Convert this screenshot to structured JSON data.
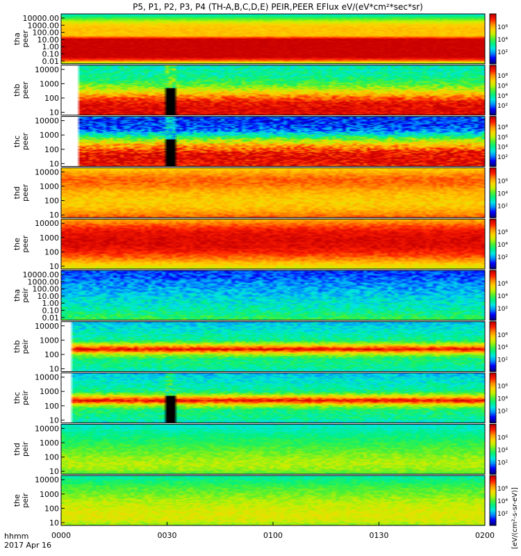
{
  "chart_data": {
    "type": "heatmap",
    "title": "P5, P1, P2, P3, P4 (TH-A,B,C,D,E) PEIR,PEER EFlux eV/(eV*cm²*sec*sr)",
    "colorbar_label": "[eV/(cm²-s-sr-eV)]",
    "x_axis": {
      "prefix_label": "hhmm",
      "date_label": "2017 Apr 16",
      "ticks": [
        "0000",
        "0030",
        "0100",
        "0130",
        "0200"
      ],
      "range_minutes": [
        0,
        120
      ]
    },
    "colormap": [
      "#00008c",
      "#0000ff",
      "#008cff",
      "#00e6e6",
      "#00f080",
      "#50f030",
      "#c8f000",
      "#ffd200",
      "#ff8c00",
      "#ff1e00",
      "#c80000"
    ],
    "panels": [
      {
        "ylabel": [
          "tha",
          "peer"
        ],
        "yticks": [
          "10000.00",
          "1000.00",
          "100.00",
          "10.00",
          "1.00",
          "0.10",
          "0.01"
        ],
        "ylim": [
          0.01,
          20000
        ],
        "cbar_ticks": [
          "10⁶",
          "10⁴",
          "10²"
        ],
        "levels": [
          3.2,
          4.6,
          6.0,
          7.0,
          7.2,
          7.2,
          7.2,
          10.0,
          10.0,
          10.0,
          10.0,
          10.0,
          10.0,
          8.4,
          4.5
        ],
        "noise": 0.3,
        "start_min": 0,
        "gaps": []
      },
      {
        "ylabel": [
          "thb",
          "peer"
        ],
        "yticks": [
          "10000",
          "1000",
          "100",
          "10"
        ],
        "ylim": [
          7,
          30000
        ],
        "cbar_ticks": [
          "10⁸",
          "10⁶",
          "10⁴",
          "10²"
        ],
        "levels": [
          3.5,
          3.6,
          3.8,
          4.2,
          4.8,
          5.8,
          7.0,
          8.3,
          9.3,
          9.6,
          9.7,
          9.5
        ],
        "noise": 0.9,
        "start_min": 5,
        "gaps": [
          [
            29.5,
            32.5
          ]
        ]
      },
      {
        "ylabel": [
          "thc",
          "peer"
        ],
        "yticks": [
          "10000",
          "1000",
          "100",
          "10"
        ],
        "ylim": [
          7,
          30000
        ],
        "cbar_ticks": [
          "10⁸",
          "10⁶",
          "10⁴",
          "10²"
        ],
        "levels": [
          1.4,
          1.3,
          1.4,
          2.0,
          3.5,
          5.5,
          7.2,
          8.4,
          9.4,
          9.7,
          9.6,
          9.2
        ],
        "noise": 1.2,
        "start_min": 5,
        "gaps": [
          [
            29.5,
            32.5
          ]
        ]
      },
      {
        "ylabel": [
          "thd",
          "peer"
        ],
        "yticks": [
          "10000",
          "1000",
          "100",
          "10"
        ],
        "ylim": [
          7,
          30000
        ],
        "cbar_ticks": [
          "10⁶",
          "10⁴",
          "10²"
        ],
        "levels": [
          7.0,
          7.8,
          8.4,
          8.2,
          7.6,
          7.2,
          7.0,
          7.2,
          7.8,
          8.6
        ],
        "noise": 0.5,
        "start_min": 0,
        "gaps": []
      },
      {
        "ylabel": [
          "the",
          "peer"
        ],
        "yticks": [
          "10000",
          "1000",
          "100",
          "10"
        ],
        "ylim": [
          7,
          30000
        ],
        "cbar_ticks": [
          "10⁶",
          "10⁴",
          "10²"
        ],
        "levels": [
          7.5,
          8.5,
          9.3,
          9.6,
          9.7,
          9.5,
          9.0,
          8.2,
          7.0,
          6.0
        ],
        "noise": 0.5,
        "start_min": 0,
        "gaps": []
      },
      {
        "ylabel": [
          "tha",
          "peir"
        ],
        "yticks": [
          "10000.00",
          "1000.00",
          "100.00",
          "10.00",
          "1.00",
          "0.10",
          "0.01"
        ],
        "ylim": [
          0.01,
          20000
        ],
        "cbar_ticks": [
          "10⁶",
          "10⁴",
          "10²"
        ],
        "levels": [
          1.4,
          1.6,
          2.0,
          2.3,
          2.6,
          3.0,
          3.3,
          3.6,
          4.2,
          4.8
        ],
        "noise": 0.9,
        "start_min": 0,
        "gaps": []
      },
      {
        "ylabel": [
          "thb",
          "peir"
        ],
        "yticks": [
          "10000",
          "1000",
          "100",
          "10"
        ],
        "ylim": [
          7,
          30000
        ],
        "cbar_ticks": [
          "10⁶",
          "10⁴",
          "10²"
        ],
        "levels": [
          2.6,
          3.0,
          3.3,
          3.6,
          4.0,
          6.5,
          9.7,
          6.0,
          4.2,
          4.0,
          3.8,
          3.2
        ],
        "noise": 0.8,
        "start_min": 3,
        "gaps": []
      },
      {
        "ylabel": [
          "thc",
          "peir"
        ],
        "yticks": [
          "10000",
          "1000",
          "100",
          "10"
        ],
        "ylim": [
          7,
          30000
        ],
        "cbar_ticks": [
          "10⁶",
          "10⁴",
          "10²"
        ],
        "levels": [
          2.6,
          3.0,
          3.3,
          3.6,
          4.0,
          6.5,
          9.7,
          6.0,
          4.2,
          4.0,
          3.8,
          3.2
        ],
        "noise": 0.8,
        "start_min": 3,
        "gaps": [
          [
            29.5,
            32.5
          ]
        ]
      },
      {
        "ylabel": [
          "thd",
          "peir"
        ],
        "yticks": [
          "10000",
          "1000",
          "100",
          "10"
        ],
        "ylim": [
          7,
          30000
        ],
        "cbar_ticks": [
          "10⁶",
          "10⁴",
          "10²"
        ],
        "levels": [
          3.2,
          3.6,
          4.0,
          4.4,
          4.8,
          5.2,
          5.6,
          5.9,
          5.6,
          4.8
        ],
        "noise": 0.5,
        "start_min": 0,
        "gaps": []
      },
      {
        "ylabel": [
          "the",
          "peir"
        ],
        "yticks": [
          "10000",
          "1000",
          "100",
          "10"
        ],
        "ylim": [
          7,
          30000
        ],
        "cbar_ticks": [
          "10⁶",
          "10⁴",
          "10²"
        ],
        "levels": [
          3.6,
          4.2,
          4.8,
          5.2,
          5.6,
          6.0,
          6.2,
          6.4,
          6.2,
          5.4
        ],
        "noise": 0.5,
        "start_min": 0,
        "gaps": []
      }
    ]
  }
}
